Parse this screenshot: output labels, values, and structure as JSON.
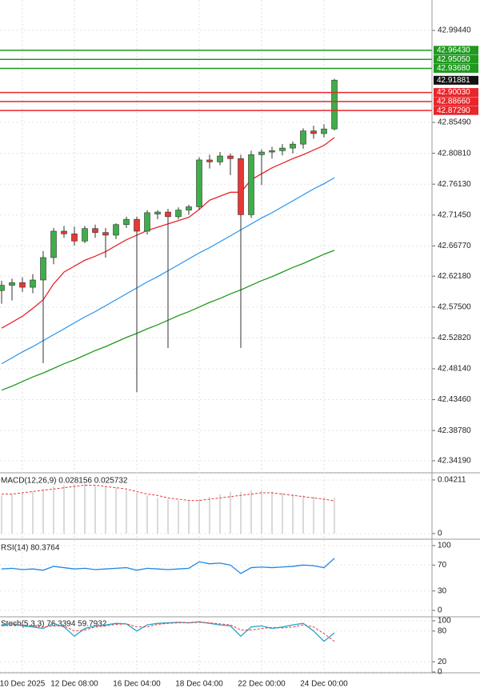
{
  "chart_data": [
    {
      "type": "candlestick",
      "categories": [
        null,
        null,
        "10 Dec 2025",
        null,
        null,
        null,
        null,
        "12 Dec 08:00",
        null,
        null,
        null,
        null,
        null,
        "16 Dec 04:00",
        null,
        null,
        null,
        null,
        null,
        "18 Dec 04:00",
        null,
        null,
        null,
        null,
        null,
        "22 Dec 00:00",
        null,
        null,
        null,
        null,
        null,
        "24 Dec 00:00",
        null
      ],
      "open": [
        42.6,
        42.608,
        42.612,
        42.605,
        42.616,
        42.65,
        42.69,
        42.686,
        42.675,
        42.694,
        42.688,
        42.684,
        42.7,
        42.708,
        42.69,
        42.716,
        42.719,
        42.712,
        42.722,
        42.727,
        42.798,
        42.795,
        42.804,
        42.8,
        42.715,
        42.806,
        42.81,
        42.812,
        42.816,
        42.822,
        42.842,
        42.838,
        42.845
      ],
      "high": [
        42.615,
        42.618,
        42.62,
        42.625,
        42.66,
        42.695,
        42.698,
        42.697,
        42.698,
        42.7,
        42.695,
        42.702,
        42.712,
        42.712,
        42.722,
        42.722,
        42.724,
        42.726,
        42.73,
        42.802,
        42.806,
        42.81,
        42.808,
        42.806,
        42.812,
        42.814,
        42.818,
        42.822,
        42.826,
        42.846,
        42.85,
        42.852,
        42.921
      ],
      "low": [
        42.58,
        42.585,
        42.598,
        42.596,
        42.49,
        42.64,
        42.68,
        42.668,
        42.672,
        42.68,
        42.65,
        42.678,
        42.695,
        42.446,
        42.685,
        42.708,
        42.513,
        42.708,
        42.715,
        42.722,
        42.785,
        42.79,
        42.775,
        42.513,
        42.71,
        42.76,
        42.8,
        42.805,
        42.808,
        42.815,
        42.83,
        42.832,
        42.843
      ],
      "close": [
        42.608,
        42.612,
        42.605,
        42.616,
        42.65,
        42.69,
        42.686,
        42.675,
        42.694,
        42.688,
        42.684,
        42.7,
        42.708,
        42.69,
        42.718,
        42.719,
        42.712,
        42.722,
        42.727,
        42.798,
        42.795,
        42.804,
        42.8,
        42.715,
        42.806,
        42.81,
        42.812,
        42.816,
        42.822,
        42.842,
        42.838,
        42.845,
        42.919
      ],
      "up_color": "#3fae49",
      "down_color": "#e53935",
      "moving_averages": [
        {
          "color": "#e8262b",
          "values": [
            42.543,
            42.552,
            42.561,
            42.573,
            42.586,
            42.61,
            42.628,
            42.637,
            42.646,
            42.652,
            42.659,
            42.668,
            42.677,
            42.684,
            42.691,
            42.696,
            42.701,
            42.706,
            42.711,
            42.723,
            42.737,
            42.743,
            42.749,
            42.749,
            42.768,
            42.777,
            42.786,
            42.793,
            42.8,
            42.806,
            42.813,
            42.82,
            42.832
          ]
        },
        {
          "color": "#3c9bec",
          "values": [
            42.489,
            42.498,
            42.507,
            42.515,
            42.524,
            42.533,
            42.542,
            42.551,
            42.56,
            42.568,
            42.577,
            42.586,
            42.595,
            42.604,
            42.613,
            42.621,
            42.63,
            42.639,
            42.648,
            42.657,
            42.665,
            42.674,
            42.683,
            42.692,
            42.701,
            42.71,
            42.718,
            42.727,
            42.736,
            42.745,
            42.754,
            42.762,
            42.771
          ]
        },
        {
          "color": "#1f9a1f",
          "values": [
            42.449,
            42.455,
            42.462,
            42.469,
            42.475,
            42.482,
            42.489,
            42.495,
            42.502,
            42.509,
            42.515,
            42.522,
            42.529,
            42.535,
            42.542,
            42.548,
            42.555,
            42.562,
            42.568,
            42.575,
            42.582,
            42.588,
            42.595,
            42.601,
            42.608,
            42.615,
            42.621,
            42.628,
            42.635,
            42.641,
            42.648,
            42.655,
            42.661
          ]
        }
      ],
      "levels": [
        {
          "value": 42.9643,
          "label": "42.96430",
          "color": "#1f9a1f"
        },
        {
          "value": 42.9505,
          "label": "42.95050",
          "color": "#1f9a1f"
        },
        {
          "value": 42.9368,
          "label": "42.93680",
          "color": "#1f9a1f"
        },
        {
          "value": 42.9003,
          "label": "42.90030",
          "color": "#e8262b"
        },
        {
          "value": 42.8866,
          "label": "42.88660",
          "color": "#e8262b"
        },
        {
          "value": 42.8729,
          "label": "42.87290",
          "color": "#e8262b"
        }
      ],
      "last_price": 42.91881,
      "ylim": [
        42.3249,
        43.0405
      ],
      "yticks": [
        {
          "value": 42.9944,
          "label": "42.99440"
        },
        {
          "value": 42.8549,
          "label": "42.85490"
        },
        {
          "value": 42.8081,
          "label": "42.80810"
        },
        {
          "value": 42.7613,
          "label": "42.76130"
        },
        {
          "value": 42.7145,
          "label": "42.71450"
        },
        {
          "value": 42.6677,
          "label": "42.66770"
        },
        {
          "value": 42.6218,
          "label": "42.62180"
        },
        {
          "value": 42.575,
          "label": "42.57500"
        },
        {
          "value": 42.5282,
          "label": "42.52820"
        },
        {
          "value": 42.4814,
          "label": "42.48140"
        },
        {
          "value": 42.4346,
          "label": "42.43460"
        },
        {
          "value": 42.3878,
          "label": "42.38780"
        },
        {
          "value": 42.3419,
          "label": "42.34190"
        }
      ]
    },
    {
      "type": "bar",
      "title": "MACD(12,26,9) 0.028156 0.025732",
      "series": [
        {
          "style": "bar",
          "color": "#b5b5b5",
          "values": [
            0.03,
            0.031,
            0.032,
            0.033,
            0.035,
            0.037,
            0.038,
            0.039,
            0.039,
            0.038,
            0.037,
            0.036,
            0.034,
            0.032,
            0.03,
            0.028,
            0.027,
            0.026,
            0.026,
            0.027,
            0.029,
            0.031,
            0.033,
            0.033,
            0.034,
            0.034,
            0.033,
            0.032,
            0.031,
            0.03,
            0.029,
            0.028,
            0.0282
          ]
        },
        {
          "style": "dashed",
          "color": "#e53935",
          "values": [
            0.031,
            0.031,
            0.032,
            0.033,
            0.034,
            0.035,
            0.036,
            0.037,
            0.038,
            0.038,
            0.037,
            0.036,
            0.035,
            0.033,
            0.031,
            0.03,
            0.028,
            0.027,
            0.026,
            0.026,
            0.027,
            0.028,
            0.029,
            0.03,
            0.031,
            0.032,
            0.032,
            0.031,
            0.03,
            0.029,
            0.028,
            0.027,
            0.0257
          ]
        }
      ],
      "ylim": [
        -0.0038,
        0.0471
      ],
      "yticks": [
        0.04211,
        0
      ]
    },
    {
      "type": "line",
      "title": "RSI(14) 80.3764",
      "series": [
        {
          "style": "solid",
          "color": "#1e88e5",
          "values": [
            64,
            65,
            63,
            64,
            62,
            68,
            66,
            64,
            65,
            63,
            64,
            65,
            66,
            62,
            65,
            64,
            63,
            64,
            65,
            75,
            72,
            73,
            70,
            57,
            66,
            67,
            66,
            67,
            68,
            70,
            69,
            66,
            80.4
          ]
        }
      ],
      "ylim": [
        -8.6,
        107.4
      ],
      "yticks": [
        100,
        70,
        30,
        0
      ]
    },
    {
      "type": "line",
      "title": "Stoch(5,3,3) 76.3394 59.7932",
      "series": [
        {
          "style": "solid",
          "color": "#26a6c9",
          "values": [
            92,
            95,
            90,
            88,
            85,
            95,
            88,
            70,
            85,
            90,
            92,
            95,
            94,
            80,
            92,
            95,
            96,
            97,
            96,
            98,
            95,
            92,
            90,
            70,
            88,
            90,
            85,
            88,
            92,
            95,
            80,
            60,
            76.3
          ]
        },
        {
          "style": "dashed",
          "color": "#e53935",
          "values": [
            90,
            92,
            92,
            90,
            88,
            90,
            90,
            80,
            82,
            88,
            90,
            93,
            94,
            88,
            88,
            93,
            95,
            96,
            96,
            97,
            96,
            94,
            92,
            82,
            82,
            85,
            87,
            86,
            88,
            92,
            88,
            75,
            59.8
          ]
        }
      ],
      "ylim": [
        0,
        107.8
      ],
      "yticks": [
        100,
        80,
        20,
        0
      ]
    }
  ]
}
